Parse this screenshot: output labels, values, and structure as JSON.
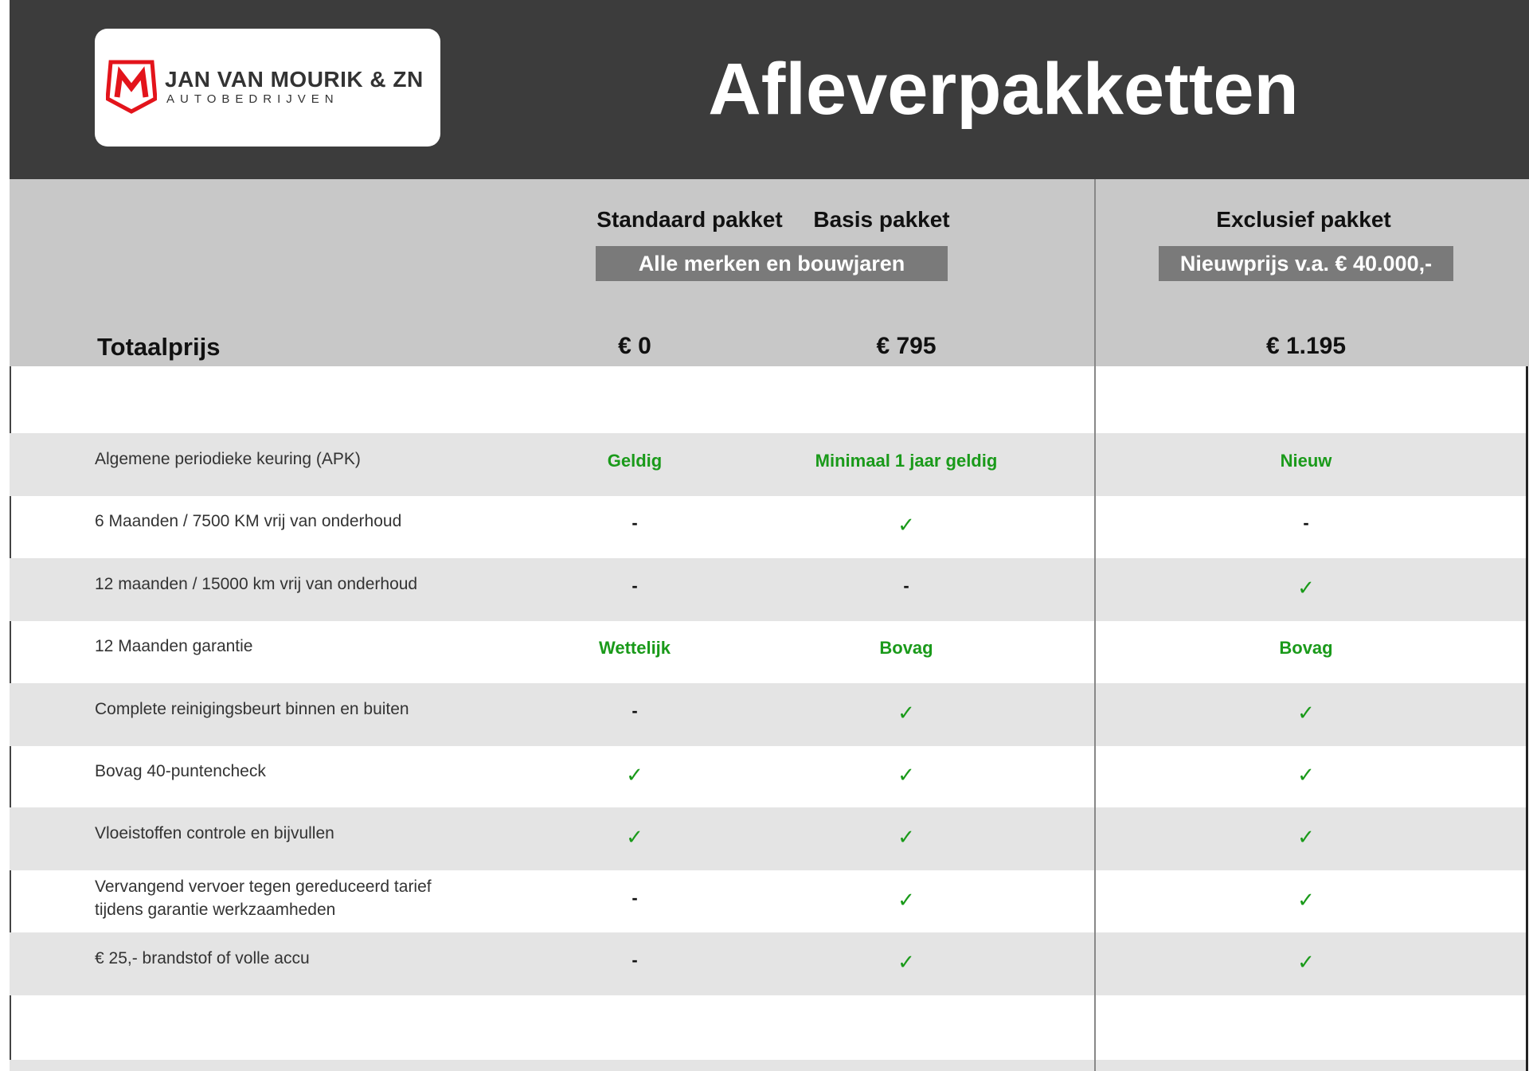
{
  "header": {
    "title": "Afleverpakketten",
    "logo": {
      "name": "JAN VAN MOURIK & ZN",
      "subtitle": "AUTOBEDRIJVEN",
      "mark": "M",
      "brand_color": "#e3141b"
    }
  },
  "columns": [
    {
      "name": "Standaard pakket",
      "price": "€ 0"
    },
    {
      "name": "Basis pakket",
      "price": "€ 795"
    },
    {
      "name": "Exclusief pakket",
      "price": "€ 1.195"
    }
  ],
  "notes": {
    "standaard_basis": "Alle merken en bouwjaren",
    "exclusief": "Nieuwprijs v.a. € 40.000,-"
  },
  "total_label": "Totaalprijs",
  "colors": {
    "green": "#1a9a1a",
    "header_bg": "#3c3c3c",
    "table_header_bg": "#c8c8c8",
    "row_alt": "#e4e4e4"
  },
  "rows": [
    {
      "label": "Algemene periodieke keuring (APK)",
      "values": [
        "Geldig",
        "Minimaal 1 jaar geldig",
        "Nieuw"
      ]
    },
    {
      "label": "6 Maanden / 7500 KM vrij van onderhoud",
      "values": [
        "-",
        "✓",
        "-"
      ]
    },
    {
      "label": "12 maanden / 15000 km vrij van onderhoud",
      "values": [
        "-",
        "-",
        "✓"
      ]
    },
    {
      "label": "12 Maanden  garantie",
      "values": [
        "Wettelijk",
        "Bovag",
        "Bovag"
      ]
    },
    {
      "label": "Complete reinigingsbeurt binnen en buiten",
      "values": [
        "-",
        "✓",
        "✓"
      ]
    },
    {
      "label": "Bovag 40-puntencheck",
      "values": [
        "✓",
        "✓",
        "✓"
      ]
    },
    {
      "label": "Vloeistoffen controle en bijvullen",
      "values": [
        "✓",
        "✓",
        "✓"
      ]
    },
    {
      "label": "Vervangend vervoer tegen gereduceerd tarief tijdens garantie werkzaamheden",
      "values": [
        "-",
        "✓",
        "✓"
      ]
    },
    {
      "label": "€ 25,- brandstof of  volle accu",
      "values": [
        "-",
        "✓",
        "✓"
      ]
    }
  ]
}
